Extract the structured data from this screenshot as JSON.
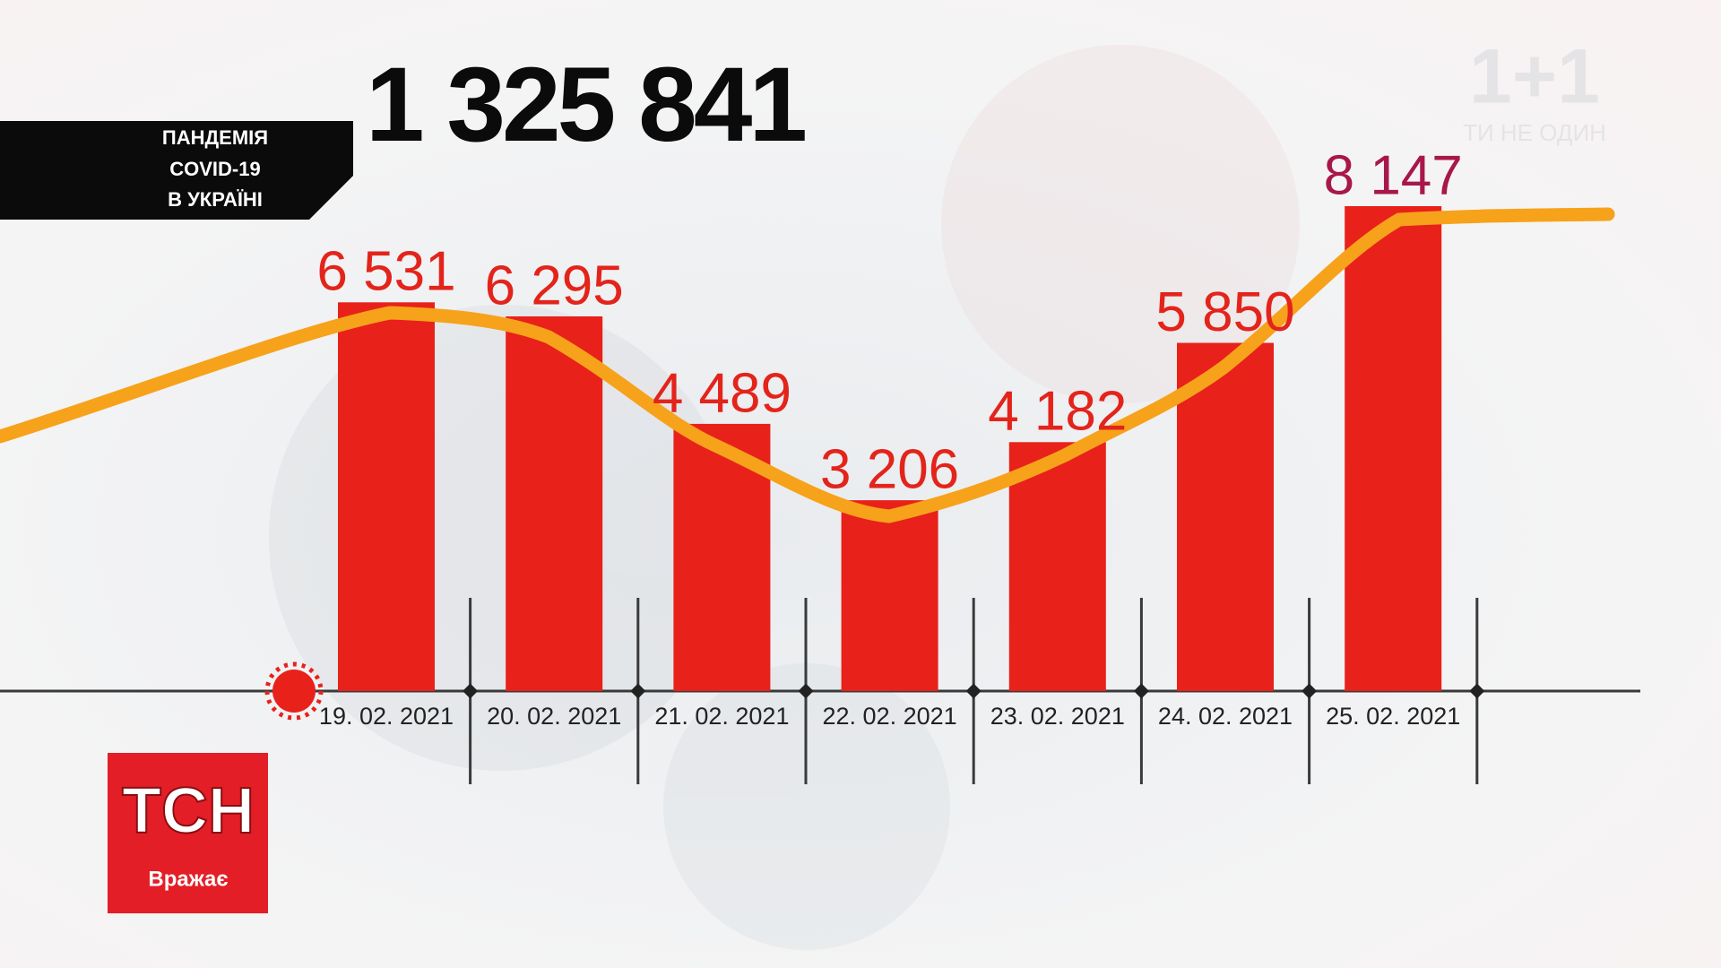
{
  "banner": {
    "lines": [
      "ПАНДЕМІЯ",
      "COVID-19",
      "В УКРАЇНІ"
    ]
  },
  "headline": "1 325 841",
  "logo": {
    "channel": "1+1",
    "slogan": "ТИ НЕ ОДИН"
  },
  "tsn": {
    "name": "ТСН",
    "rubric": "Вражає"
  },
  "chart_data": {
    "type": "bar",
    "categories": [
      "19. 02. 2021",
      "20. 02. 2021",
      "21. 02. 2021",
      "22. 02. 2021",
      "23. 02. 2021",
      "24. 02. 2021",
      "25. 02. 2021"
    ],
    "values": [
      6531,
      6295,
      4489,
      3206,
      4182,
      5850,
      8147
    ],
    "value_labels": [
      "6 531",
      "6 295",
      "4 489",
      "3 206",
      "4 182",
      "5 850",
      "8 147"
    ],
    "color": "#e8211a",
    "value_label_colors": [
      "#e3241b",
      "#e3241b",
      "#e3241b",
      "#e3241b",
      "#e3241b",
      "#e3241b",
      "#a8174a"
    ]
  }
}
